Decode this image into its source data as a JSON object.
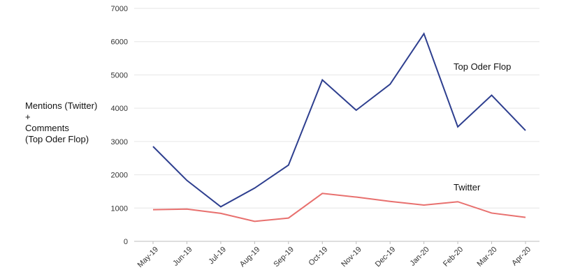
{
  "chart_data": {
    "type": "line",
    "ylabel_lines": [
      "Mentions (Twitter)",
      "+",
      "Comments",
      "(Top Oder Flop)"
    ],
    "categories": [
      "May-19",
      "Jun-19",
      "Jul-19",
      "Aug-19",
      "Sep-19",
      "Oct-19",
      "Nov-19",
      "Dec-19",
      "Jan-20",
      "Feb-20",
      "Mar-20",
      "Apr-20"
    ],
    "ylim": [
      0,
      7000
    ],
    "yticks": [
      0,
      1000,
      2000,
      3000,
      4000,
      5000,
      6000,
      7000
    ],
    "grid": true,
    "series": [
      {
        "name": "Top Oder Flop",
        "color": "#2e3f8f",
        "values": [
          2850,
          1830,
          1040,
          1600,
          2290,
          4850,
          3940,
          4720,
          6240,
          3440,
          4390,
          3330
        ]
      },
      {
        "name": "Twitter",
        "color": "#e8706e",
        "values": [
          950,
          970,
          840,
          600,
          700,
          1440,
          1330,
          1200,
          1090,
          1190,
          850,
          720
        ]
      }
    ]
  }
}
